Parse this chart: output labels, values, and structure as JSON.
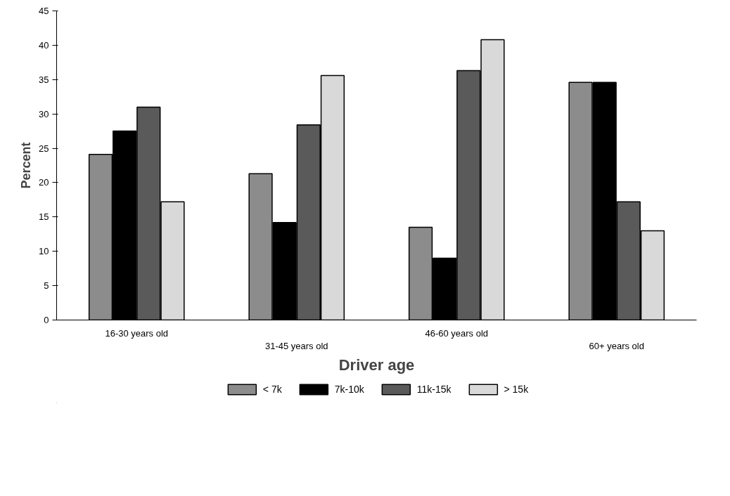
{
  "chart_data": {
    "type": "bar",
    "xlabel": "Driver age",
    "ylabel": "Percent",
    "categories": [
      "16-30 years old",
      "31-45 years old",
      "46-60 years old",
      "60+ years old"
    ],
    "series": [
      {
        "name": "< 7k",
        "color": "#8c8c8c",
        "values": [
          24.1,
          21.3,
          13.5,
          34.6
        ]
      },
      {
        "name": "7k-10k",
        "color": "#000000",
        "values": [
          27.5,
          14.2,
          9.0,
          34.6
        ]
      },
      {
        "name": "11k-15k",
        "color": "#5a5a5a",
        "values": [
          31.0,
          28.4,
          36.3,
          17.2
        ]
      },
      {
        "name": "> 15k",
        "color": "#d9d9d9",
        "values": [
          17.2,
          35.6,
          40.8,
          13.0
        ]
      }
    ],
    "ylim": [
      0,
      45
    ],
    "yticks": [
      0,
      5,
      10,
      15,
      20,
      25,
      30,
      35,
      40,
      45
    ],
    "grid": false,
    "legend": "bottom"
  }
}
